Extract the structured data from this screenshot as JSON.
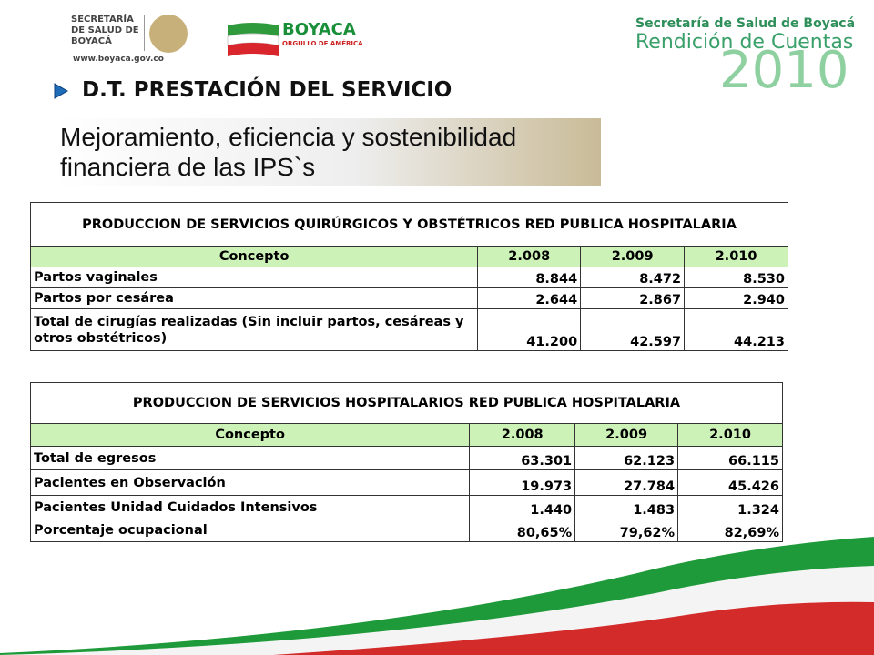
{
  "header": {
    "logo_left": "SECRETARÍA DE SALUD DE BOYACÁ",
    "website": "www.boyaca.gov.co",
    "logo_center": "BOYACA",
    "logo_center_sub": "ORGULLO DE AMÉRICA",
    "right_line1": "Secretaría de Salud de Boyacá",
    "right_line2": "Rendición de Cuentas",
    "right_year": "2010",
    "section": "D.T. PRESTACIÓN DEL SERVICIO"
  },
  "title": {
    "line1": "Mejoramiento, eficiencia y sostenibilidad",
    "line2": "financiera de las IPS`s"
  },
  "tables": [
    {
      "title": "PRODUCCION DE SERVICIOS QUIRÚRGICOS Y OBSTÉTRICOS RED PUBLICA HOSPITALARIA",
      "columns": [
        "Concepto",
        "2.008",
        "2.009",
        "2.010"
      ],
      "rows": [
        [
          "Partos vaginales",
          "8.844",
          "8.472",
          "8.530"
        ],
        [
          "Partos por cesárea",
          "2.644",
          "2.867",
          "2.940"
        ],
        [
          "Total de cirugías realizadas (Sin incluir partos, cesáreas y otros obstétricos)",
          "41.200",
          "42.597",
          "44.213"
        ]
      ]
    },
    {
      "title": "PRODUCCION DE SERVICIOS HOSPITALARIOS RED PUBLICA HOSPITALARIA",
      "columns": [
        "Concepto",
        "2.008",
        "2.009",
        "2.010"
      ],
      "rows": [
        [
          "Total de egresos",
          "63.301",
          "62.123",
          "66.115"
        ],
        [
          "Pacientes en Observación",
          "19.973",
          "27.784",
          "45.426"
        ],
        [
          "Pacientes Unidad Cuidados Intensivos",
          "1.440",
          "1.483",
          "1.324"
        ],
        [
          "Porcentaje ocupacional",
          "80,65%",
          "79,62%",
          "82,69%"
        ]
      ]
    }
  ]
}
